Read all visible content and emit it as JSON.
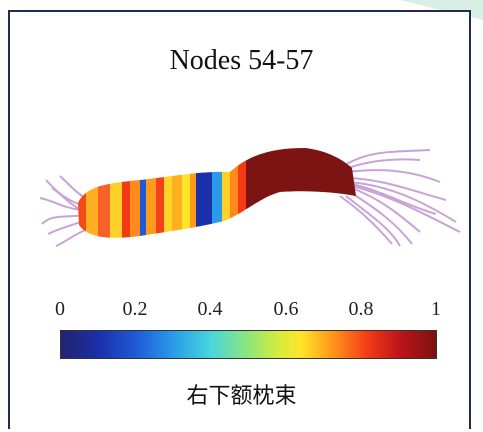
{
  "title": "Nodes 54-57",
  "colorbar": {
    "ticks": [
      "0",
      "0.2",
      "0.4",
      "0.6",
      "0.8",
      "1"
    ],
    "label": "右下额枕束",
    "colormap": "jet"
  },
  "colors": {
    "frame": "#1f2d4a",
    "fiber": "#c9a2d8",
    "tract_core": "#7d1414",
    "corner_accent": "#cfe9de"
  }
}
